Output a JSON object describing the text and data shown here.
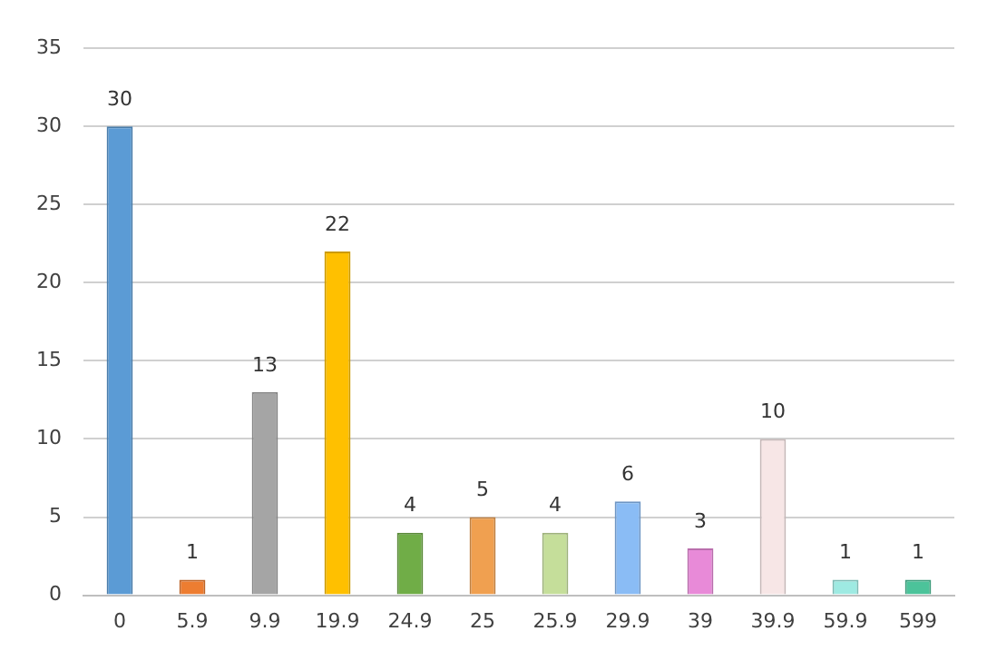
{
  "chart_data": {
    "type": "bar",
    "categories": [
      "0",
      "5.9",
      "9.9",
      "19.9",
      "24.9",
      "25",
      "25.9",
      "29.9",
      "39",
      "39.9",
      "59.9",
      "599"
    ],
    "values": [
      30,
      1,
      13,
      22,
      4,
      5,
      4,
      6,
      3,
      10,
      1,
      1
    ],
    "colors": [
      "#5b9bd5",
      "#ed7d31",
      "#a5a5a5",
      "#ffc000",
      "#70ad47",
      "#f0a050",
      "#c5de9a",
      "#8abcf5",
      "#e88ad8",
      "#f7e6e6",
      "#9eeae2",
      "#4cc39a"
    ],
    "ylim": [
      0,
      35
    ],
    "yticks": [
      0,
      5,
      10,
      15,
      20,
      25,
      30,
      35
    ],
    "grid": "y",
    "data_labels": true
  }
}
